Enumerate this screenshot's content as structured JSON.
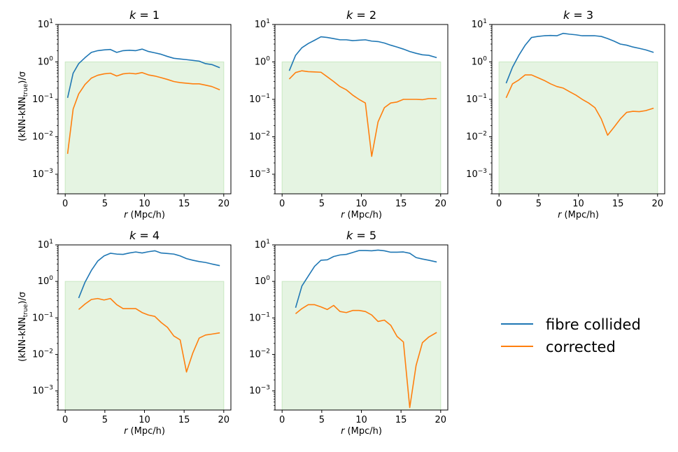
{
  "figure": {
    "ylabel_main": "(kNN-kNN",
    "ylabel_sub": "true",
    "ylabel_end": ")/σ",
    "xlabel_var": "r",
    "xlabel_unit": " (Mpc/h)",
    "legend": [
      "fibre collided",
      "corrected"
    ]
  },
  "colors": {
    "fibre": "#1f77b4",
    "corrected": "#ff7f0e",
    "band": "#e5f4e2",
    "band_edge": "#c9e8c3"
  },
  "chart_data": [
    {
      "type": "line",
      "title": "k = 1",
      "title_var": "k",
      "title_val": "= 1",
      "xlim": [
        -0.9,
        20.9
      ],
      "xticks": [
        0,
        5,
        10,
        15,
        20
      ],
      "ylim": [
        0.0003,
        10
      ],
      "yscale": "log",
      "yticks": [
        "10^1",
        "10^0",
        "10^-1",
        "10^-2",
        "10^-3"
      ],
      "band": [
        0,
        20,
        0.0003,
        1
      ],
      "series": [
        {
          "name": "fibre collided",
          "x": [
            0.3,
            1.0,
            1.7,
            2.5,
            3.3,
            4.1,
            4.9,
            5.7,
            6.5,
            7.3,
            8.1,
            8.9,
            9.7,
            10.5,
            11.3,
            12.1,
            12.9,
            13.7,
            14.5,
            15.3,
            16.1,
            16.9,
            17.7,
            18.5,
            19.5
          ],
          "y": [
            0.11,
            0.5,
            0.9,
            1.3,
            1.8,
            2.0,
            2.1,
            2.15,
            1.8,
            2.0,
            2.05,
            2.0,
            2.2,
            1.9,
            1.75,
            1.6,
            1.4,
            1.25,
            1.2,
            1.15,
            1.1,
            1.05,
            0.9,
            0.85,
            0.7
          ]
        },
        {
          "name": "corrected",
          "x": [
            0.3,
            1.0,
            1.7,
            2.5,
            3.3,
            4.1,
            4.9,
            5.7,
            6.5,
            7.3,
            8.1,
            8.9,
            9.7,
            10.5,
            11.3,
            12.1,
            12.9,
            13.7,
            14.5,
            15.3,
            16.1,
            16.9,
            17.7,
            18.5,
            19.5
          ],
          "y": [
            0.0035,
            0.055,
            0.14,
            0.25,
            0.37,
            0.44,
            0.48,
            0.5,
            0.42,
            0.48,
            0.5,
            0.48,
            0.52,
            0.45,
            0.42,
            0.38,
            0.34,
            0.3,
            0.28,
            0.27,
            0.26,
            0.26,
            0.24,
            0.22,
            0.18
          ]
        }
      ]
    },
    {
      "type": "line",
      "title": "k = 2",
      "title_var": "k",
      "title_val": "= 2",
      "xlim": [
        -0.9,
        20.9
      ],
      "xticks": [
        0,
        5,
        10,
        15,
        20
      ],
      "ylim": [
        0.0003,
        10
      ],
      "yscale": "log",
      "yticks": [
        "10^1",
        "10^0",
        "10^-1",
        "10^-2",
        "10^-3"
      ],
      "band": [
        0,
        20,
        0.0003,
        1
      ],
      "series": [
        {
          "name": "fibre collided",
          "x": [
            0.9,
            1.7,
            2.5,
            3.3,
            4.1,
            4.9,
            5.7,
            6.5,
            7.3,
            8.1,
            8.9,
            9.7,
            10.5,
            11.3,
            12.1,
            12.9,
            13.7,
            14.5,
            15.3,
            16.1,
            16.9,
            17.7,
            18.5,
            19.5
          ],
          "y": [
            0.58,
            1.5,
            2.4,
            3.1,
            3.8,
            4.7,
            4.5,
            4.2,
            3.9,
            3.9,
            3.7,
            3.8,
            3.9,
            3.6,
            3.5,
            3.2,
            2.8,
            2.5,
            2.2,
            1.9,
            1.7,
            1.55,
            1.5,
            1.3
          ]
        },
        {
          "name": "corrected",
          "x": [
            0.9,
            1.7,
            2.5,
            3.3,
            4.1,
            4.9,
            5.7,
            6.5,
            7.3,
            8.1,
            8.9,
            9.7,
            10.5,
            11.3,
            12.1,
            12.9,
            13.7,
            14.5,
            15.3,
            16.1,
            16.9,
            17.7,
            18.5,
            19.5
          ],
          "y": [
            0.35,
            0.52,
            0.58,
            0.55,
            0.54,
            0.53,
            0.4,
            0.3,
            0.22,
            0.18,
            0.13,
            0.1,
            0.08,
            0.003,
            0.025,
            0.06,
            0.08,
            0.085,
            0.1,
            0.1,
            0.1,
            0.098,
            0.105,
            0.105
          ]
        }
      ]
    },
    {
      "type": "line",
      "title": "k = 3",
      "title_var": "k",
      "title_val": "= 3",
      "xlim": [
        -0.9,
        20.9
      ],
      "xticks": [
        0,
        5,
        10,
        15,
        20
      ],
      "ylim": [
        0.0003,
        10
      ],
      "yscale": "log",
      "yticks": [
        "10^1",
        "10^0",
        "10^-1",
        "10^-2",
        "10^-3"
      ],
      "band": [
        0,
        20,
        0.0003,
        1
      ],
      "series": [
        {
          "name": "fibre collided",
          "x": [
            0.9,
            1.7,
            2.5,
            3.3,
            4.1,
            4.9,
            5.7,
            6.5,
            7.3,
            8.1,
            8.9,
            9.7,
            10.5,
            11.3,
            12.1,
            12.9,
            13.7,
            14.5,
            15.3,
            16.1,
            16.9,
            17.7,
            18.5,
            19.5
          ],
          "y": [
            0.27,
            0.72,
            1.5,
            2.8,
            4.5,
            4.8,
            5.0,
            5.1,
            5.0,
            5.8,
            5.5,
            5.3,
            5.0,
            5.0,
            5.0,
            4.8,
            4.2,
            3.6,
            3.0,
            2.8,
            2.5,
            2.3,
            2.1,
            1.8
          ]
        },
        {
          "name": "corrected",
          "x": [
            0.9,
            1.7,
            2.5,
            3.3,
            4.1,
            4.9,
            5.7,
            6.5,
            7.3,
            8.1,
            8.9,
            9.7,
            10.5,
            11.3,
            12.1,
            12.9,
            13.7,
            14.5,
            15.3,
            16.1,
            16.9,
            17.7,
            18.5,
            19.5
          ],
          "y": [
            0.11,
            0.26,
            0.33,
            0.45,
            0.45,
            0.38,
            0.32,
            0.26,
            0.22,
            0.2,
            0.16,
            0.13,
            0.1,
            0.08,
            0.06,
            0.03,
            0.011,
            0.018,
            0.03,
            0.045,
            0.048,
            0.047,
            0.05,
            0.058
          ]
        }
      ]
    },
    {
      "type": "line",
      "title": "k = 4",
      "title_var": "k",
      "title_val": "= 4",
      "xlim": [
        -0.9,
        20.9
      ],
      "xticks": [
        0,
        5,
        10,
        15,
        20
      ],
      "ylim": [
        0.0003,
        10
      ],
      "yscale": "log",
      "yticks": [
        "10^1",
        "10^0",
        "10^-1",
        "10^-2",
        "10^-3"
      ],
      "band": [
        0,
        20,
        0.0003,
        1
      ],
      "series": [
        {
          "name": "fibre collided",
          "x": [
            1.7,
            2.5,
            3.3,
            4.1,
            4.9,
            5.7,
            6.5,
            7.3,
            8.1,
            8.9,
            9.7,
            10.5,
            11.3,
            12.1,
            12.9,
            13.7,
            14.5,
            15.3,
            16.1,
            16.9,
            17.7,
            18.5,
            19.5
          ],
          "y": [
            0.35,
            0.95,
            2.0,
            3.6,
            5.0,
            5.9,
            5.6,
            5.5,
            6.0,
            6.4,
            6.0,
            6.5,
            6.9,
            6.0,
            5.8,
            5.6,
            5.0,
            4.2,
            3.8,
            3.5,
            3.3,
            3.0,
            2.7
          ]
        },
        {
          "name": "corrected",
          "x": [
            1.7,
            2.5,
            3.3,
            4.1,
            4.9,
            5.7,
            6.5,
            7.3,
            8.1,
            8.9,
            9.7,
            10.5,
            11.3,
            12.1,
            12.9,
            13.7,
            14.5,
            15.3,
            16.1,
            16.9,
            17.7,
            18.5,
            19.5
          ],
          "y": [
            0.17,
            0.24,
            0.32,
            0.34,
            0.31,
            0.34,
            0.23,
            0.18,
            0.18,
            0.18,
            0.14,
            0.12,
            0.11,
            0.075,
            0.055,
            0.032,
            0.025,
            0.0033,
            0.011,
            0.028,
            0.034,
            0.036,
            0.039
          ]
        }
      ]
    },
    {
      "type": "line",
      "title": "k = 5",
      "title_var": "k",
      "title_val": "= 5",
      "xlim": [
        -0.9,
        20.9
      ],
      "xticks": [
        0,
        5,
        10,
        15,
        20
      ],
      "ylim": [
        0.0003,
        10
      ],
      "yscale": "log",
      "yticks": [
        "10^1",
        "10^0",
        "10^-1",
        "10^-2",
        "10^-3"
      ],
      "band": [
        0,
        20,
        0.0003,
        1
      ],
      "series": [
        {
          "name": "fibre collided",
          "x": [
            1.7,
            2.5,
            3.3,
            4.1,
            4.9,
            5.7,
            6.5,
            7.3,
            8.1,
            8.9,
            9.7,
            10.5,
            11.3,
            12.1,
            12.9,
            13.7,
            14.5,
            15.3,
            16.1,
            16.9,
            17.7,
            18.5,
            19.5
          ],
          "y": [
            0.19,
            0.75,
            1.4,
            2.6,
            3.8,
            3.9,
            4.8,
            5.3,
            5.5,
            6.2,
            7.0,
            7.0,
            6.9,
            7.2,
            6.9,
            6.3,
            6.3,
            6.4,
            5.9,
            4.5,
            4.1,
            3.8,
            3.4
          ]
        },
        {
          "name": "corrected",
          "x": [
            1.7,
            2.5,
            3.3,
            4.1,
            4.9,
            5.7,
            6.5,
            7.3,
            8.1,
            8.9,
            9.7,
            10.5,
            11.3,
            12.1,
            12.9,
            13.7,
            14.5,
            15.3,
            16.1,
            16.9,
            17.7,
            18.5,
            19.5
          ],
          "y": [
            0.13,
            0.18,
            0.23,
            0.23,
            0.2,
            0.17,
            0.22,
            0.15,
            0.14,
            0.16,
            0.16,
            0.15,
            0.12,
            0.08,
            0.087,
            0.063,
            0.031,
            0.022,
            0.00035,
            0.005,
            0.021,
            0.03,
            0.04
          ]
        }
      ]
    }
  ]
}
